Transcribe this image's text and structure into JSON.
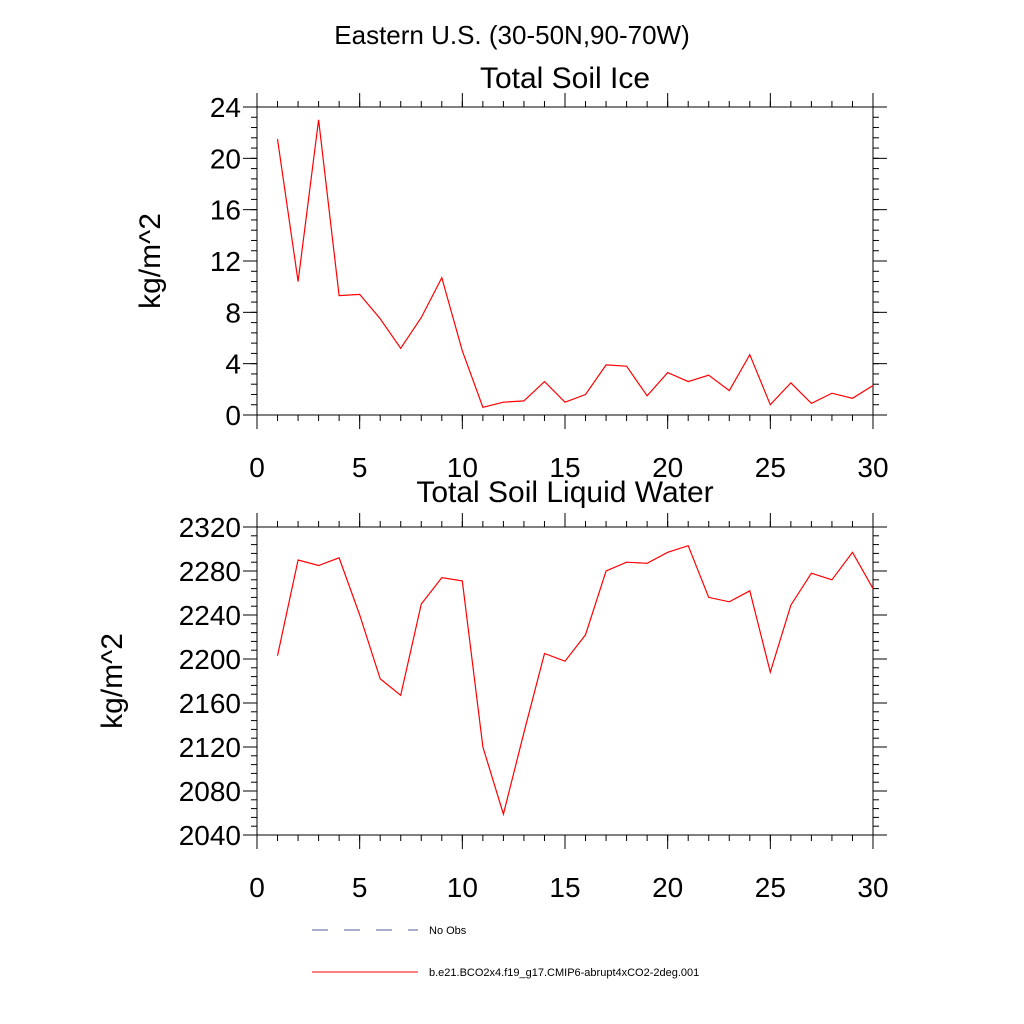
{
  "page_title": "Eastern U.S. (30-50N,90-70W)",
  "colors": {
    "model_line": "#ff0000",
    "obs_line": "#5a5a9a",
    "axis": "#000000"
  },
  "legend": {
    "obs_label": "No Obs",
    "model_label": "b.e21.BCO2x4.f19_g17.CMIP6-abrupt4xCO2-2deg.001"
  },
  "chart_data": [
    {
      "type": "line",
      "title": "Total Soil Ice",
      "xlabel": "",
      "ylabel": "kg/m^2",
      "xlim": [
        0,
        30
      ],
      "ylim": [
        0,
        24
      ],
      "xticks": [
        0,
        5,
        10,
        15,
        20,
        25,
        30
      ],
      "yticks": [
        0,
        4,
        8,
        12,
        16,
        20,
        24
      ],
      "x": [
        1,
        2,
        3,
        4,
        5,
        6,
        7,
        8,
        9,
        10,
        11,
        12,
        13,
        14,
        15,
        16,
        17,
        18,
        19,
        20,
        21,
        22,
        23,
        24,
        25,
        26,
        27,
        28,
        29,
        30
      ],
      "series": [
        {
          "name": "b.e21.BCO2x4.f19_g17.CMIP6-abrupt4xCO2-2deg.001",
          "values": [
            21.5,
            10.4,
            23.0,
            9.3,
            9.4,
            7.5,
            5.2,
            7.6,
            10.7,
            5.0,
            0.6,
            1.0,
            1.1,
            2.6,
            1.0,
            1.6,
            3.9,
            3.8,
            1.5,
            3.3,
            2.6,
            3.1,
            1.9,
            4.7,
            0.8,
            2.5,
            0.9,
            1.7,
            1.3,
            2.3
          ]
        }
      ]
    },
    {
      "type": "line",
      "title": "Total Soil Liquid Water",
      "xlabel": "",
      "ylabel": "kg/m^2",
      "xlim": [
        0,
        30
      ],
      "ylim": [
        2040,
        2320
      ],
      "xticks": [
        0,
        5,
        10,
        15,
        20,
        25,
        30
      ],
      "yticks": [
        2040,
        2080,
        2120,
        2160,
        2200,
        2240,
        2280,
        2320
      ],
      "x": [
        1,
        2,
        3,
        4,
        5,
        6,
        7,
        8,
        9,
        10,
        11,
        12,
        13,
        14,
        15,
        16,
        17,
        18,
        19,
        20,
        21,
        22,
        23,
        24,
        25,
        26,
        27,
        28,
        29,
        30
      ],
      "series": [
        {
          "name": "b.e21.BCO2x4.f19_g17.CMIP6-abrupt4xCO2-2deg.001",
          "values": [
            2203,
            2290,
            2285,
            2292,
            2240,
            2182,
            2167,
            2250,
            2274,
            2271,
            2120,
            2059,
            2133,
            2205,
            2198,
            2222,
            2280,
            2288,
            2287,
            2297,
            2303,
            2256,
            2252,
            2262,
            2188,
            2249,
            2278,
            2272,
            2297,
            2264
          ]
        }
      ]
    }
  ]
}
